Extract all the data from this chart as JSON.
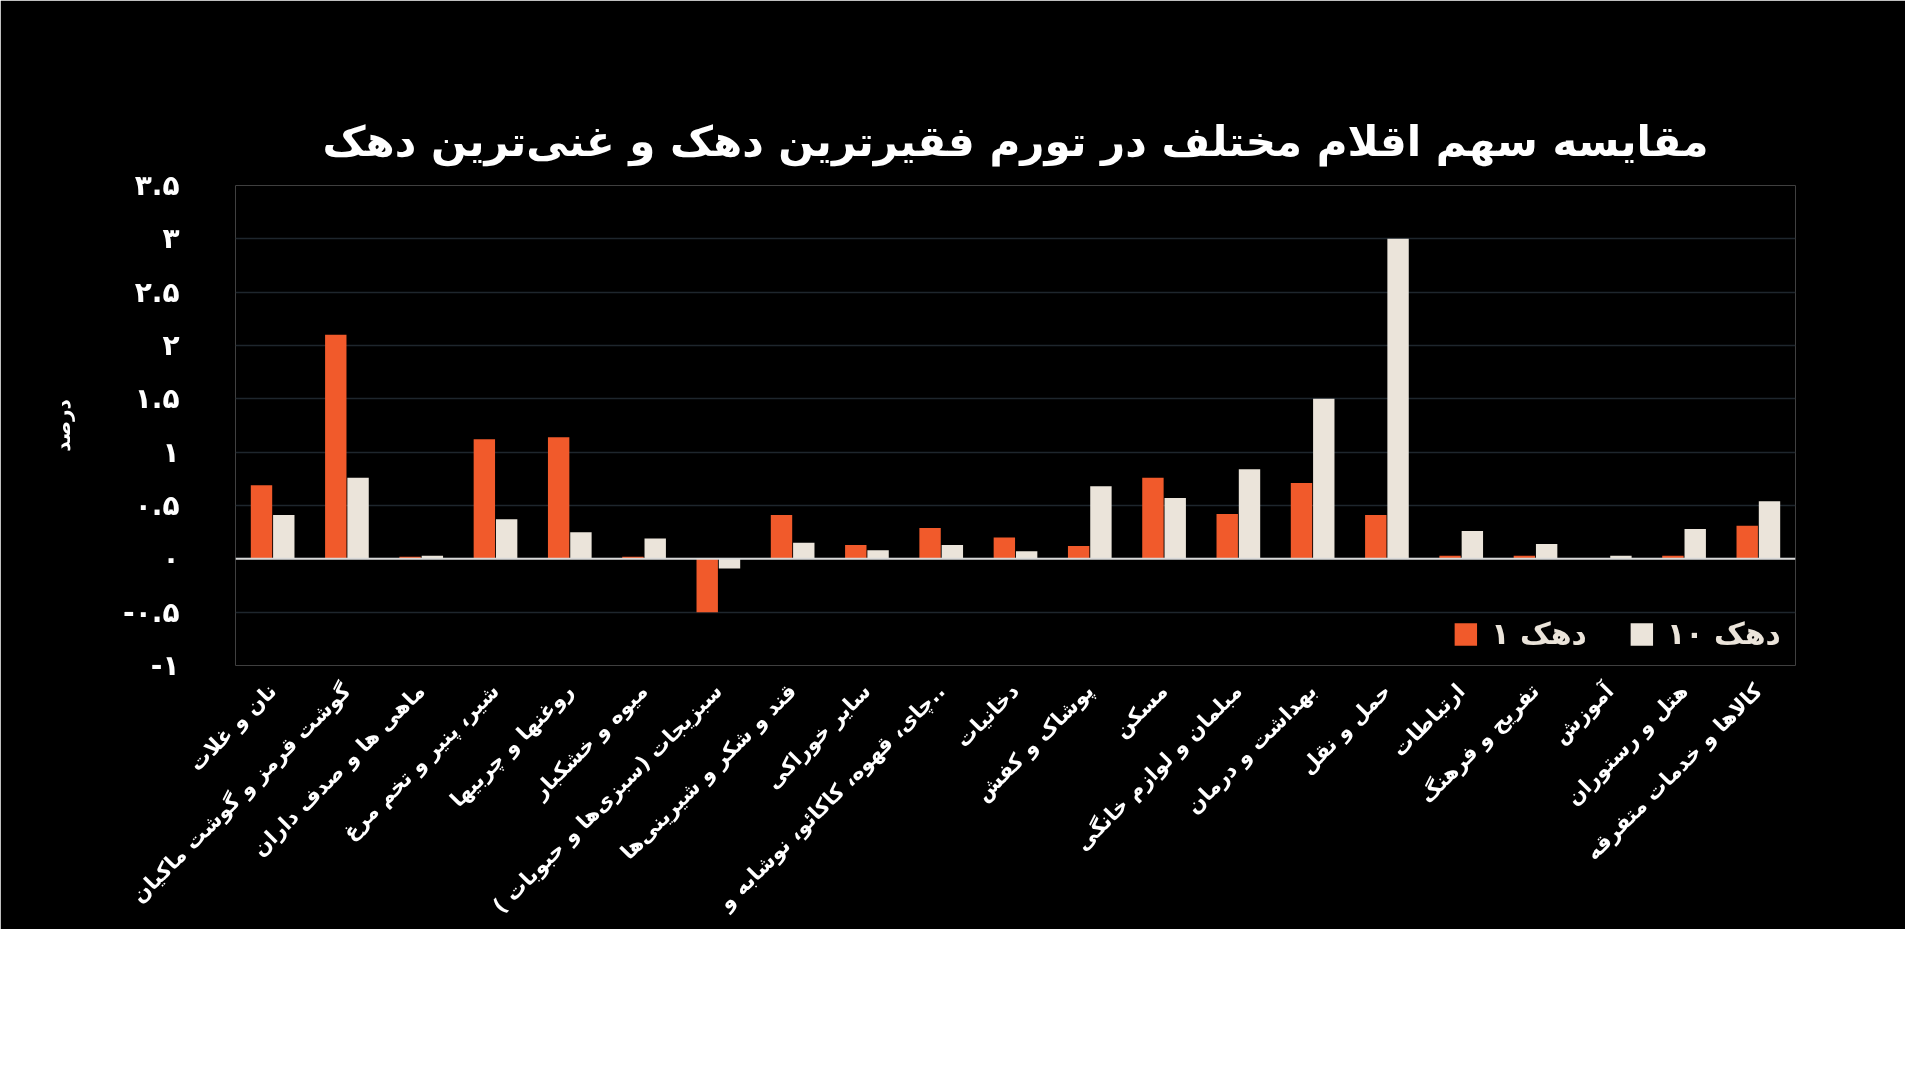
{
  "chart_data": {
    "type": "bar",
    "title": "مقایسه سهم اقلام مختلف در تورم فقیرترین دهک و غنی‌ترین دهک",
    "ylabel": "درصد",
    "categories": [
      "نان و غلات",
      "گوشت قرمز و گوشت ماکیان",
      "ماهی ها و صدف داران",
      "شیر، پنیر و تخم مرغ",
      "روغنها و چربیها",
      "میوه و خشکبار",
      "سبزیجات (سبزی‌ها و حبوبات )",
      "قند و شکر و شیرینی‌ها",
      "سایر خوراکی",
      "چای، قهوه، کاکائو، نوشابه و..",
      "دخانیات",
      "پوشاک و کفش",
      "مسکن",
      "مبلمان و لوازم خانگی",
      "بهداشت و درمان",
      "حمل و نقل",
      "ارتباطات",
      "تفریح و فرهنگ",
      "آموزش",
      "هتل و رستوران",
      "کالاها و خدمات متفرقه"
    ],
    "series": [
      {
        "name": "دهک ۱",
        "color": "#f15a2b",
        "values": [
          0.69,
          2.1,
          0.02,
          1.12,
          1.14,
          0.02,
          -0.5,
          0.41,
          0.13,
          0.29,
          0.2,
          0.12,
          0.76,
          0.42,
          0.71,
          0.41,
          0.03,
          0.03,
          null,
          0.03,
          0.31
        ]
      },
      {
        "name": "دهک ۱۰",
        "color": "#ebe4da",
        "values": [
          0.41,
          0.76,
          0.03,
          0.37,
          0.25,
          0.19,
          -0.09,
          0.15,
          0.08,
          0.13,
          0.07,
          0.68,
          0.57,
          0.84,
          1.5,
          3.0,
          0.26,
          0.14,
          0.03,
          0.28,
          0.54
        ]
      }
    ],
    "ylim": [
      -1,
      3.5
    ],
    "yticks": [
      {
        "value": -1,
        "label": "-۱"
      },
      {
        "value": -0.5,
        "label": "-۰.۵"
      },
      {
        "value": 0,
        "label": "۰"
      },
      {
        "value": 0.5,
        "label": "۰.۵"
      },
      {
        "value": 1,
        "label": "۱"
      },
      {
        "value": 1.5,
        "label": "۱.۵"
      },
      {
        "value": 2,
        "label": "۲"
      },
      {
        "value": 2.5,
        "label": "۲.۵"
      },
      {
        "value": 3,
        "label": "۳"
      },
      {
        "value": 3.5,
        "label": "۳.۵"
      }
    ],
    "ref_lines": [
      {
        "axis": "y",
        "value": 0,
        "color": "#d9d9d9"
      }
    ],
    "grid": "y",
    "legend": "bottom right"
  }
}
